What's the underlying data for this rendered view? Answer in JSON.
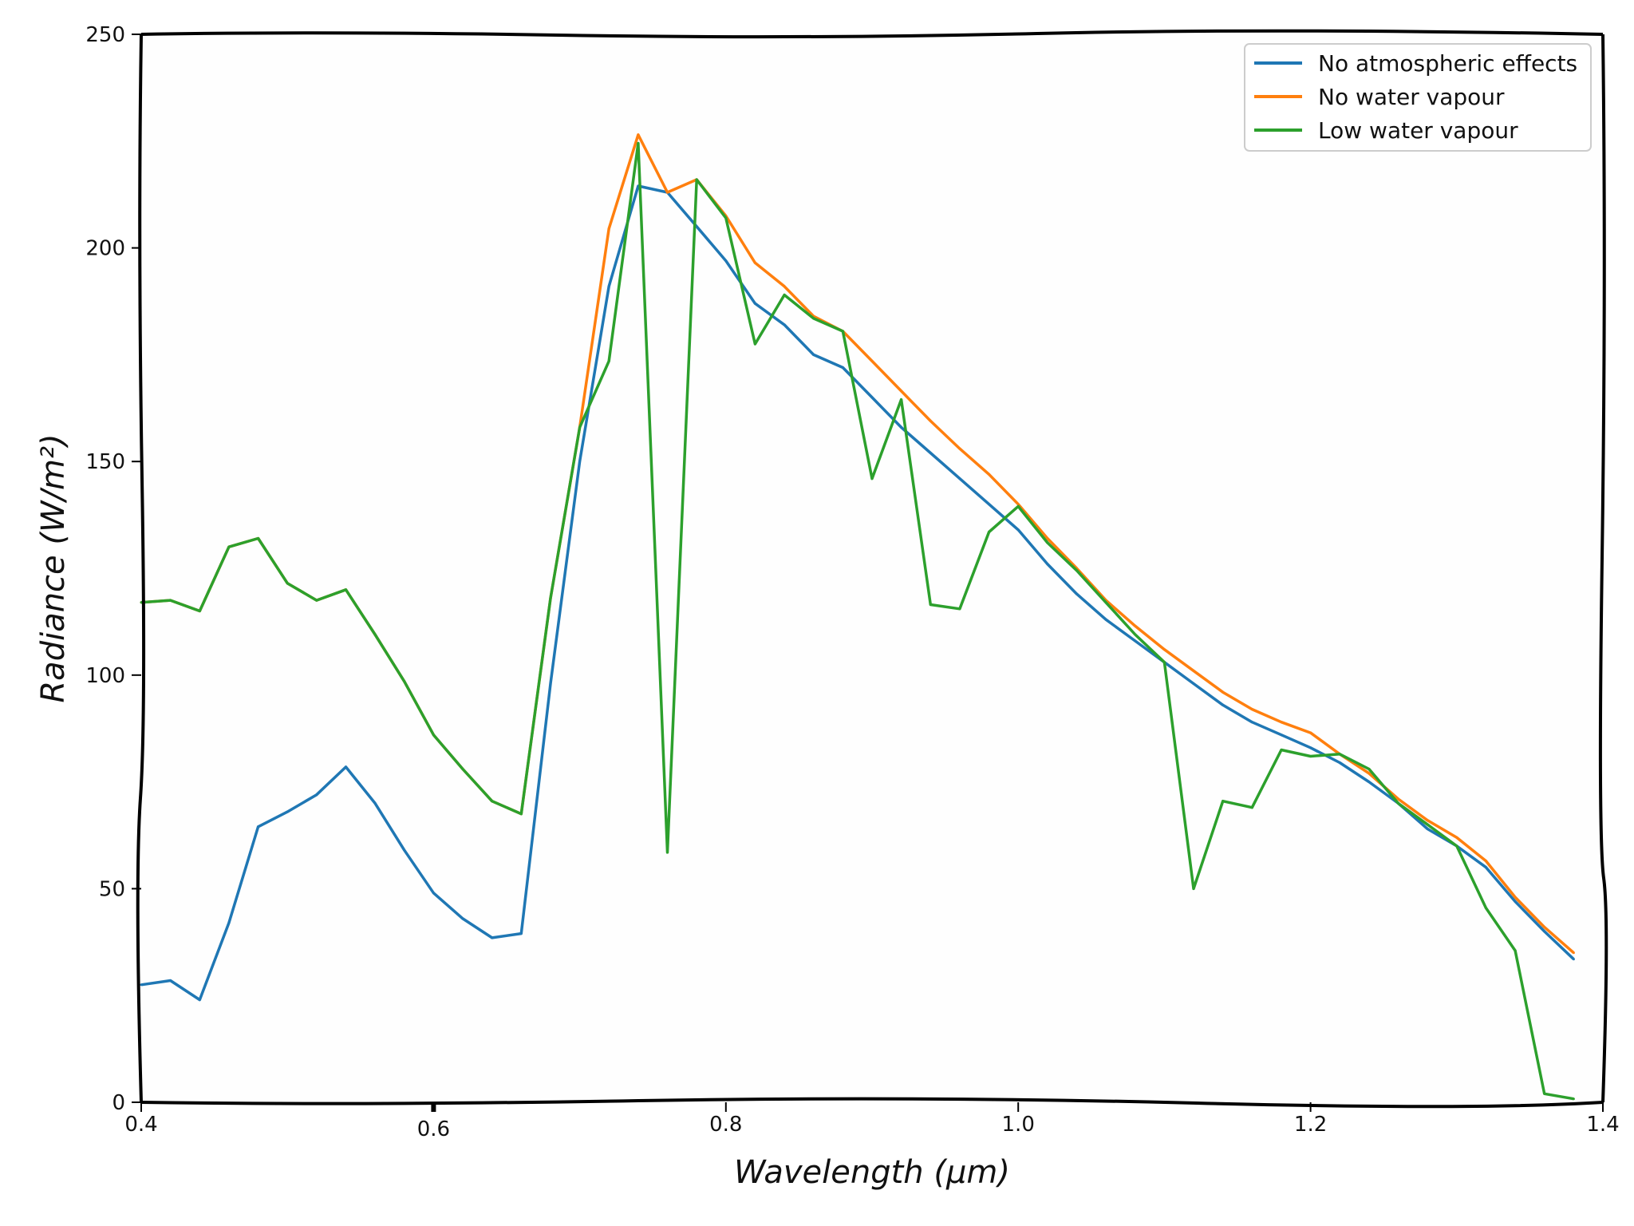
{
  "chart_data": {
    "type": "line",
    "title": "",
    "xlabel": "Wavelength (μm)",
    "ylabel": "Radiance (W/m²)",
    "xlim": [
      0.4,
      1.4
    ],
    "ylim": [
      0,
      250
    ],
    "xticks": [
      "0.4",
      "0.6",
      "0.8",
      "1.0",
      "1.2",
      "1.4"
    ],
    "xtick_values": [
      0.4,
      0.6,
      0.8,
      1.0,
      1.2,
      1.4
    ],
    "yticks": [
      "0",
      "50",
      "100",
      "150",
      "200",
      "250"
    ],
    "ytick_values": [
      0,
      50,
      100,
      150,
      200,
      250
    ],
    "grid": false,
    "legend_position": "top-right",
    "x": [
      0.4,
      0.42,
      0.44,
      0.46,
      0.48,
      0.5,
      0.52,
      0.54,
      0.56,
      0.58,
      0.6,
      0.62,
      0.64,
      0.66,
      0.68,
      0.7,
      0.72,
      0.74,
      0.76,
      0.78,
      0.8,
      0.82,
      0.84,
      0.86,
      0.88,
      0.9,
      0.92,
      0.94,
      0.96,
      0.98,
      1.0,
      1.02,
      1.04,
      1.06,
      1.08,
      1.1,
      1.12,
      1.14,
      1.16,
      1.18,
      1.2,
      1.22,
      1.24,
      1.26,
      1.28,
      1.3,
      1.32,
      1.34,
      1.36,
      1.38
    ],
    "series": [
      {
        "name": "No atmospheric effects",
        "color": "#1f77b4",
        "values": [
          27.5,
          28.5,
          24,
          42,
          64.5,
          68,
          72,
          78.5,
          70,
          59,
          49,
          43,
          38.5,
          39.5,
          98,
          150,
          191,
          214.5,
          213,
          205,
          197,
          187,
          182,
          175,
          172,
          165,
          158,
          152,
          146,
          140,
          134,
          126,
          119,
          113,
          108,
          103,
          98,
          93,
          89,
          86,
          83,
          79.5,
          75,
          70,
          64,
          60,
          55,
          47,
          40,
          33.5
        ]
      },
      {
        "name": "No water vapour",
        "color": "#ff7f0e",
        "values": [
          117,
          117.5,
          115,
          130,
          132,
          121.5,
          117.5,
          120,
          109.5,
          98.5,
          86,
          78,
          70.5,
          67.5,
          118,
          158,
          204.5,
          226.5,
          213,
          216,
          207.5,
          196.5,
          191,
          184,
          180.5,
          173.5,
          166.5,
          159.5,
          153,
          147,
          140,
          132,
          125,
          117.5,
          111.5,
          106,
          101,
          96,
          92,
          89,
          86.5,
          81.5,
          77,
          71,
          66,
          62,
          56.5,
          48,
          41,
          35
        ]
      },
      {
        "name": "Low water vapour",
        "color": "#2ca02c",
        "values": [
          117,
          117.5,
          115,
          130,
          132,
          121.5,
          117.5,
          120,
          109.5,
          98.5,
          86,
          78,
          70.5,
          67.5,
          118,
          158,
          173.5,
          224.5,
          58.5,
          216,
          207,
          177.5,
          189,
          183.5,
          180.5,
          146,
          164.5,
          116.5,
          115.5,
          133.5,
          139.5,
          131,
          124.5,
          117,
          109.5,
          103,
          50,
          70.5,
          69,
          82.5,
          81,
          81.5,
          78,
          70,
          65,
          60,
          45.5,
          35.5,
          2,
          0.8
        ]
      }
    ]
  }
}
